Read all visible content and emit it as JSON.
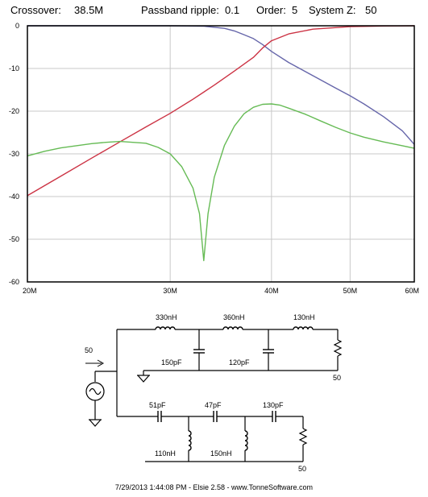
{
  "header": {
    "crossover_label": "Crossover:",
    "crossover_value": "38.5M",
    "ripple_label": "Passband ripple:",
    "ripple_value": "0.1",
    "order_label": "Order:",
    "order_value": "5",
    "systemz_label": "System Z:",
    "systemz_value": "50"
  },
  "chart_data": {
    "type": "line",
    "x_scale": "log",
    "xlim": [
      20,
      60
    ],
    "ylim": [
      -60,
      0
    ],
    "x_ticks": [
      {
        "value": 20,
        "label": "20M"
      },
      {
        "value": 30,
        "label": "30M"
      },
      {
        "value": 40,
        "label": "40M"
      },
      {
        "value": 50,
        "label": "50M"
      },
      {
        "value": 60,
        "label": "60M"
      }
    ],
    "y_ticks": [
      {
        "value": 0,
        "label": "0"
      },
      {
        "value": -10,
        "label": "-10"
      },
      {
        "value": -20,
        "label": "-20"
      },
      {
        "value": -30,
        "label": "-30"
      },
      {
        "value": -40,
        "label": "-40"
      },
      {
        "value": -50,
        "label": "-50"
      },
      {
        "value": -60,
        "label": "-60"
      }
    ],
    "grid": true,
    "series": [
      {
        "color": "#6666aa",
        "points": [
          [
            20,
            0
          ],
          [
            25,
            0
          ],
          [
            30,
            0
          ],
          [
            33,
            -0.1
          ],
          [
            35,
            -0.6
          ],
          [
            36,
            -1.2
          ],
          [
            37,
            -2.1
          ],
          [
            38,
            -3.0
          ],
          [
            39,
            -4.4
          ],
          [
            40,
            -6.0
          ],
          [
            42,
            -8.6
          ],
          [
            45,
            -11.7
          ],
          [
            48,
            -14.6
          ],
          [
            50,
            -16.4
          ],
          [
            52,
            -18.3
          ],
          [
            55,
            -21.3
          ],
          [
            58,
            -24.6
          ],
          [
            60,
            -27.8
          ]
        ]
      },
      {
        "color": "#cc3344",
        "points": [
          [
            20,
            -39.8
          ],
          [
            22,
            -35.2
          ],
          [
            24,
            -31.0
          ],
          [
            26,
            -27.2
          ],
          [
            28,
            -23.7
          ],
          [
            30,
            -20.5
          ],
          [
            32,
            -17.2
          ],
          [
            34,
            -13.9
          ],
          [
            36,
            -10.6
          ],
          [
            38,
            -7.4
          ],
          [
            39,
            -5.2
          ],
          [
            40,
            -3.5
          ],
          [
            42,
            -1.9
          ],
          [
            45,
            -0.8
          ],
          [
            50,
            -0.2
          ],
          [
            55,
            -0.05
          ],
          [
            60,
            0
          ]
        ]
      },
      {
        "color": "#66bb55",
        "points": [
          [
            20,
            -30.5
          ],
          [
            21,
            -29.4
          ],
          [
            22,
            -28.6
          ],
          [
            24,
            -27.6
          ],
          [
            25,
            -27.3
          ],
          [
            26,
            -27.1
          ],
          [
            28,
            -27.5
          ],
          [
            29,
            -28.5
          ],
          [
            30,
            -30.0
          ],
          [
            31,
            -33.0
          ],
          [
            32,
            -38.0
          ],
          [
            32.6,
            -44
          ],
          [
            33,
            -55.0
          ],
          [
            33.4,
            -44
          ],
          [
            34,
            -35.5
          ],
          [
            35,
            -28.0
          ],
          [
            36,
            -23.5
          ],
          [
            37,
            -20.6
          ],
          [
            38,
            -19.1
          ],
          [
            39,
            -18.4
          ],
          [
            40,
            -18.3
          ],
          [
            41,
            -18.6
          ],
          [
            42,
            -19.3
          ],
          [
            44,
            -20.7
          ],
          [
            46,
            -22.3
          ],
          [
            48,
            -23.8
          ],
          [
            50,
            -25.1
          ],
          [
            52,
            -26.1
          ],
          [
            55,
            -27.2
          ],
          [
            58,
            -28.1
          ],
          [
            60,
            -28.7
          ]
        ]
      }
    ]
  },
  "schematic": {
    "source_impedance": "50",
    "lowpass": {
      "l1": "330nH",
      "l2": "360nH",
      "l3": "130nH",
      "c1": "150pF",
      "c2": "120pF",
      "load": "50"
    },
    "highpass": {
      "c1": "51pF",
      "c2": "47pF",
      "c3": "130pF",
      "l1": "110nH",
      "l2": "150nH",
      "load": "50"
    }
  },
  "footer": {
    "text": "7/29/2013 1:44:08 PM  -  Elsie 2.58  -  www.TonneSoftware.com"
  }
}
